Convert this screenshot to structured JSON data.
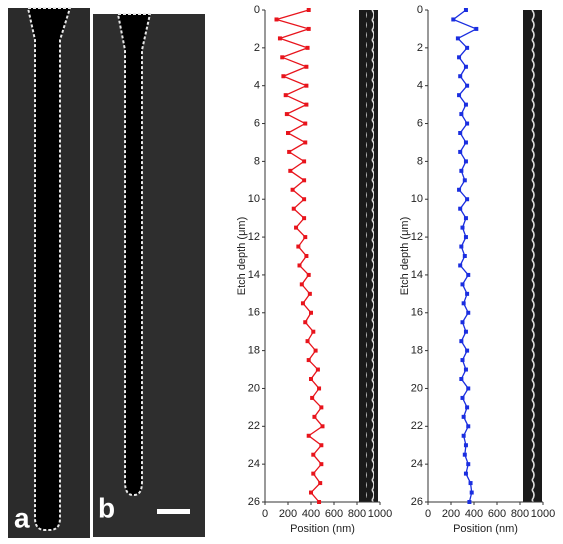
{
  "panel_labels": [
    "a",
    "b"
  ],
  "chart_data": [
    {
      "type": "line",
      "ylabel": "Etch depth (μm)",
      "xlabel": "Position (nm)",
      "color": "#e8141c",
      "yinvert": true,
      "xlim": [
        0,
        1000
      ],
      "xticks": [
        0,
        200,
        400,
        600,
        800,
        1000
      ],
      "ylim": [
        0,
        26
      ],
      "yticks": [
        0,
        2,
        4,
        6,
        8,
        10,
        12,
        14,
        16,
        18,
        20,
        22,
        24,
        26
      ],
      "y": [
        0,
        0.5,
        1,
        1.5,
        2,
        2.5,
        3,
        3.5,
        4,
        4.5,
        5,
        5.5,
        6,
        6.5,
        7,
        7.5,
        8,
        8.5,
        9,
        9.5,
        10,
        10.5,
        11,
        11.5,
        12,
        12.5,
        13,
        13.5,
        14,
        14.5,
        15,
        15.5,
        16,
        16.5,
        17,
        17.5,
        18,
        18.5,
        19,
        19.5,
        20,
        20.5,
        21,
        21.5,
        22,
        22.5,
        23,
        23.5,
        24,
        24.5,
        25,
        25.5,
        26
      ],
      "values": [
        380,
        100,
        380,
        130,
        370,
        150,
        360,
        160,
        360,
        180,
        360,
        190,
        350,
        200,
        350,
        210,
        340,
        220,
        340,
        240,
        340,
        250,
        340,
        270,
        350,
        290,
        360,
        300,
        380,
        320,
        390,
        330,
        400,
        350,
        420,
        370,
        440,
        380,
        460,
        400,
        470,
        410,
        490,
        430,
        500,
        380,
        490,
        420,
        490,
        420,
        480,
        400,
        470
      ]
    },
    {
      "type": "line",
      "ylabel": "Etch depth (μm)",
      "xlabel": "Position (nm)",
      "color": "#1a2ee0",
      "yinvert": true,
      "xlim": [
        0,
        1000
      ],
      "xticks": [
        0,
        200,
        400,
        600,
        800,
        1000
      ],
      "ylim": [
        0,
        26
      ],
      "yticks": [
        0,
        2,
        4,
        6,
        8,
        10,
        12,
        14,
        16,
        18,
        20,
        22,
        24,
        26
      ],
      "y": [
        0,
        0.5,
        1,
        1.5,
        2,
        2.5,
        3,
        3.5,
        4,
        4.5,
        5,
        5.5,
        6,
        6.5,
        7,
        7.5,
        8,
        8.5,
        9,
        9.5,
        10,
        10.5,
        11,
        11.5,
        12,
        12.5,
        13,
        13.5,
        14,
        14.5,
        15,
        15.5,
        16,
        16.5,
        17,
        17.5,
        18,
        18.5,
        19,
        19.5,
        20,
        20.5,
        21,
        21.5,
        22,
        22.5,
        23,
        23.5,
        24,
        24.5,
        25,
        25.5,
        26
      ],
      "values": [
        330,
        220,
        420,
        260,
        340,
        270,
        330,
        280,
        340,
        270,
        330,
        290,
        340,
        280,
        330,
        280,
        330,
        290,
        320,
        270,
        340,
        280,
        330,
        300,
        330,
        290,
        320,
        280,
        350,
        300,
        340,
        310,
        350,
        300,
        330,
        290,
        340,
        300,
        330,
        290,
        350,
        300,
        340,
        310,
        350,
        310,
        330,
        320,
        350,
        330,
        370,
        380,
        360
      ]
    }
  ]
}
